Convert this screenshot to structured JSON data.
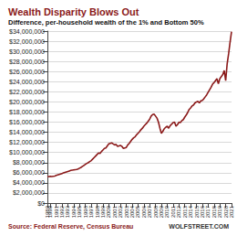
{
  "chart_data": {
    "type": "line",
    "title": "Wealth Disparity Blows Out",
    "subtitle": "Difference, per-household wealth of the 1% and Bottom 50%",
    "annotations": [
      "Source: Federal Reserve, Census Bureau",
      "WOLFSTREET.COM"
    ],
    "color": "#8b1a1a",
    "grid": true,
    "categories": [
      "1989",
      null,
      "1990",
      null,
      null,
      null,
      "1991",
      null,
      null,
      null,
      "1992",
      null,
      null,
      null,
      "1993",
      null,
      null,
      null,
      "1994",
      null,
      null,
      null,
      "1995",
      null,
      null,
      null,
      "1996",
      null,
      null,
      null,
      "1997",
      null,
      null,
      null,
      "1998",
      null,
      null,
      null,
      "1999",
      null,
      null,
      null,
      "2000",
      null,
      null,
      null,
      "2001",
      null,
      null,
      null,
      "2002",
      null,
      null,
      null,
      "2003",
      null,
      null,
      null,
      "2004",
      null,
      null,
      null,
      "2005",
      null,
      null,
      null,
      "2006",
      null,
      null,
      null,
      "2007",
      null,
      null,
      null,
      "2008",
      null,
      null,
      null,
      "2009",
      null,
      null,
      null,
      "2010",
      null,
      null,
      null,
      "2011",
      null,
      null,
      null,
      "2012",
      null,
      null,
      null,
      "2013",
      null,
      null,
      null,
      "2014",
      null,
      null,
      null,
      "2015",
      null,
      null,
      null,
      "2016",
      null,
      null,
      null,
      "2017",
      null,
      null,
      null,
      "2018",
      null,
      null,
      null,
      "2019",
      null,
      null,
      null,
      "2020",
      null,
      null,
      null,
      "2021"
    ],
    "values": [
      5200000,
      5250000,
      5300000,
      5250000,
      5300000,
      5350000,
      5450000,
      5550000,
      5650000,
      5750000,
      5850000,
      5950000,
      6050000,
      6150000,
      6250000,
      6350000,
      6450000,
      6500000,
      6550000,
      6600000,
      6650000,
      6750000,
      6900000,
      7050000,
      7250000,
      7450000,
      7650000,
      7850000,
      8000000,
      8200000,
      8400000,
      8700000,
      9000000,
      9300000,
      9600000,
      9900000,
      9800000,
      10200000,
      10500000,
      10800000,
      10900000,
      11300000,
      11700000,
      11800000,
      11900000,
      11700000,
      11500000,
      11600000,
      11200000,
      11300000,
      11400000,
      11200000,
      10800000,
      10900000,
      11000000,
      11500000,
      11800000,
      12200000,
      12600000,
      12900000,
      13100000,
      13500000,
      13800000,
      14100000,
      14500000,
      14800000,
      15200000,
      15500000,
      15800000,
      16200000,
      16600000,
      17200000,
      17500000,
      17600000,
      17200000,
      16800000,
      16000000,
      14800000,
      13800000,
      14200000,
      14700000,
      15000000,
      15200000,
      14800000,
      15300000,
      15600000,
      15900000,
      16000000,
      15200000,
      15500000,
      16000000,
      15900000,
      16300000,
      16500000,
      17000000,
      17400000,
      17900000,
      18500000,
      18800000,
      19200000,
      19400000,
      19800000,
      20000000,
      20100000,
      19800000,
      20200000,
      20300000,
      20600000,
      21000000,
      21400000,
      21900000,
      22400000,
      22900000,
      23500000,
      23800000,
      24200000,
      24600000,
      23600000,
      24600000,
      25000000,
      25400000,
      26200000,
      24200000,
      27500000,
      29500000,
      31800000,
      33900000
    ],
    "ylim": [
      0,
      34000000
    ],
    "yticks": [
      {
        "value": 0,
        "label": "$0"
      },
      {
        "value": 2000000,
        "label": "$2,000,000"
      },
      {
        "value": 4000000,
        "label": "$4,000,000"
      },
      {
        "value": 6000000,
        "label": "$6,000,000"
      },
      {
        "value": 8000000,
        "label": "$8,000,000"
      },
      {
        "value": 10000000,
        "label": "$10,000,000"
      },
      {
        "value": 12000000,
        "label": "$12,000,000"
      },
      {
        "value": 14000000,
        "label": "$14,000,000"
      },
      {
        "value": 16000000,
        "label": "$16,000,000"
      },
      {
        "value": 18000000,
        "label": "$18,000,000"
      },
      {
        "value": 20000000,
        "label": "$20,000,000"
      },
      {
        "value": 22000000,
        "label": "$22,000,000"
      },
      {
        "value": 24000000,
        "label": "$24,000,000"
      },
      {
        "value": 26000000,
        "label": "$26,000,000"
      },
      {
        "value": 28000000,
        "label": "$28,000,000"
      },
      {
        "value": 30000000,
        "label": "$30,000,000"
      },
      {
        "value": 32000000,
        "label": "$32,000,000"
      },
      {
        "value": 34000000,
        "label": "$34,000,000"
      }
    ]
  }
}
